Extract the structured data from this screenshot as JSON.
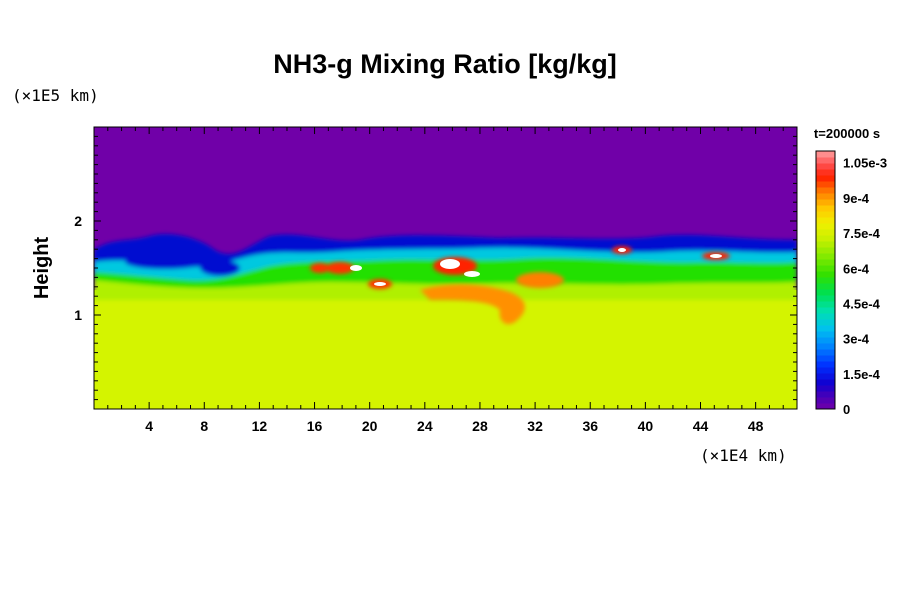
{
  "chart_data": {
    "type": "heatmap",
    "title": "NH3-g Mixing Ratio [kg/kg]",
    "ylabel": "Height",
    "x_unit": "(×1E4 km)",
    "y_unit": "(×1E5 km)",
    "time_label": "t=200000 s",
    "xlim": [
      0,
      51
    ],
    "ylim": [
      0,
      3
    ],
    "x_ticks": [
      "4",
      "8",
      "12",
      "16",
      "20",
      "24",
      "28",
      "32",
      "36",
      "40",
      "44",
      "48"
    ],
    "x_tick_values": [
      4,
      8,
      12,
      16,
      20,
      24,
      28,
      32,
      36,
      40,
      44,
      48
    ],
    "y_ticks": [
      "1",
      "2"
    ],
    "y_tick_values": [
      1,
      2
    ],
    "colorbar": {
      "min": 0,
      "max": 0.0011,
      "labels": [
        "1.05e-3",
        "9e-4",
        "7.5e-4",
        "6e-4",
        "4.5e-4",
        "3e-4",
        "1.5e-4",
        "0"
      ],
      "label_values": [
        0.00105,
        0.0009,
        0.00075,
        0.0006,
        0.00045,
        0.0003,
        0.00015,
        0
      ]
    },
    "field_summary": {
      "upper_layer_value": 0,
      "lower_layer_value": 0.0008,
      "transition_height": 1.6,
      "maximum_value": 0.0011
    },
    "colors": {
      "zero": "#7000a8",
      "low": "#0010d0",
      "mid": "#00d0c0",
      "bulk": "#d4f400",
      "high": "#ff2000",
      "max": "#ffffff"
    }
  }
}
